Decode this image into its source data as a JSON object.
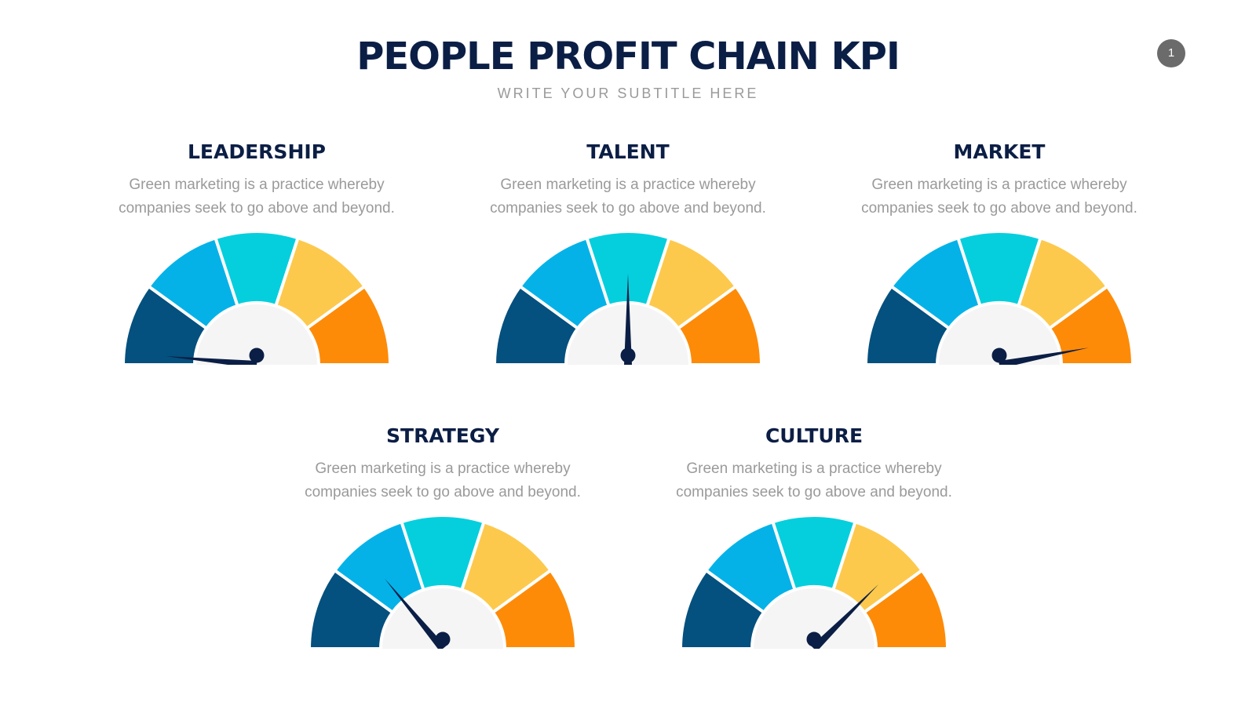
{
  "header": {
    "title": "PEOPLE PROFIT CHAIN KPI",
    "subtitle": "WRITE YOUR SUBTITLE HERE",
    "page_number": "1"
  },
  "colors": {
    "heading": "#0b1e45",
    "description": "#9a9a9a",
    "subtitle": "#9a9a9a",
    "badge": "#6b6b6b",
    "hub": "#f5f5f5",
    "needle": "#0b1e45",
    "segments": [
      "#04507e",
      "#04b2e8",
      "#05cfdd",
      "#fdc94d",
      "#fd8b08"
    ]
  },
  "kpis": [
    {
      "title": "LEADERSHIP",
      "desc_line1": "Green marketing is a practice whereby",
      "desc_line2": "companies seek to go above and beyond.",
      "gauge_value": 0.03
    },
    {
      "title": "TALENT",
      "desc_line1": "Green marketing is a practice whereby",
      "desc_line2": "companies seek to go above and beyond.",
      "gauge_value": 0.5
    },
    {
      "title": "MARKET",
      "desc_line1": "Green marketing is a practice whereby",
      "desc_line2": "companies seek to go above and beyond.",
      "gauge_value": 0.94
    },
    {
      "title": "STRATEGY",
      "desc_line1": "Green marketing is a practice whereby",
      "desc_line2": "companies seek to go above and beyond.",
      "gauge_value": 0.28
    },
    {
      "title": "CULTURE",
      "desc_line1": "Green marketing is a practice whereby",
      "desc_line2": "companies seek to go above and beyond.",
      "gauge_value": 0.75
    }
  ]
}
